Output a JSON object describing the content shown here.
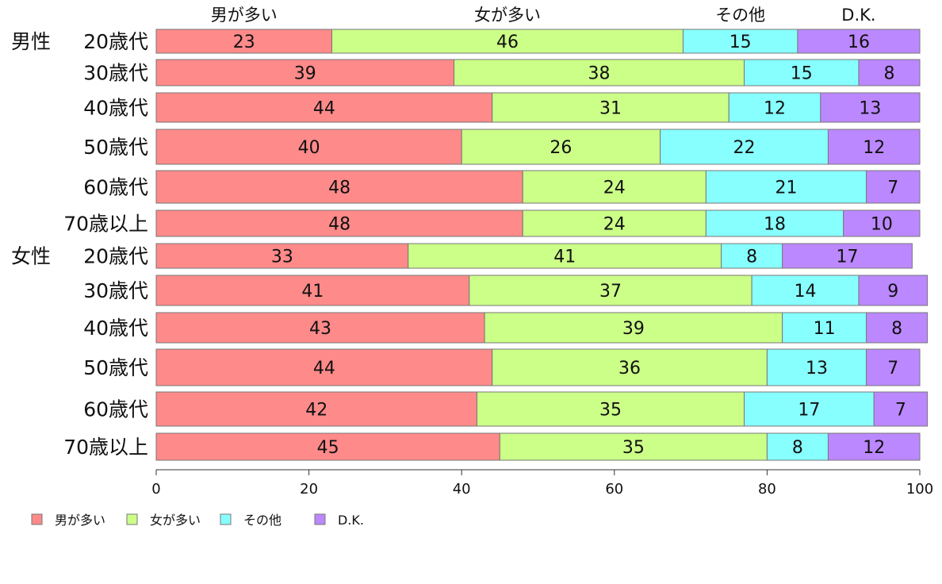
{
  "chart_data": {
    "type": "bar",
    "orientation": "horizontal",
    "stacked": true,
    "xlim": [
      0,
      100
    ],
    "x_ticks": [
      0,
      20,
      40,
      60,
      80,
      100
    ],
    "grid": false,
    "legend_position": "bottom-left",
    "series_header_labels": [
      "男が多い",
      "女が多い",
      "その他",
      "D.K."
    ],
    "groups": [
      {
        "label": "男性",
        "start": 0
      },
      {
        "label": "女性",
        "start": 6
      }
    ],
    "categories": [
      "20歳代",
      "30歳代",
      "40歳代",
      "50歳代",
      "60歳代",
      "70歳以上",
      "20歳代",
      "30歳代",
      "40歳代",
      "50歳代",
      "60歳代",
      "70歳以上"
    ],
    "series": [
      {
        "name": "男が多い",
        "color": "#ff8a8a",
        "values": [
          23,
          39,
          44,
          40,
          48,
          48,
          33,
          41,
          43,
          44,
          42,
          45
        ]
      },
      {
        "name": "女が多い",
        "color": "#ccff88",
        "values": [
          46,
          38,
          31,
          26,
          24,
          24,
          41,
          37,
          39,
          36,
          35,
          35
        ]
      },
      {
        "name": "その他",
        "color": "#88ffff",
        "values": [
          15,
          15,
          12,
          22,
          21,
          18,
          8,
          14,
          11,
          13,
          17,
          8
        ]
      },
      {
        "name": "D.K.",
        "color": "#bb88ff",
        "values": [
          16,
          8,
          13,
          12,
          7,
          10,
          17,
          9,
          8,
          7,
          7,
          12
        ]
      }
    ]
  }
}
